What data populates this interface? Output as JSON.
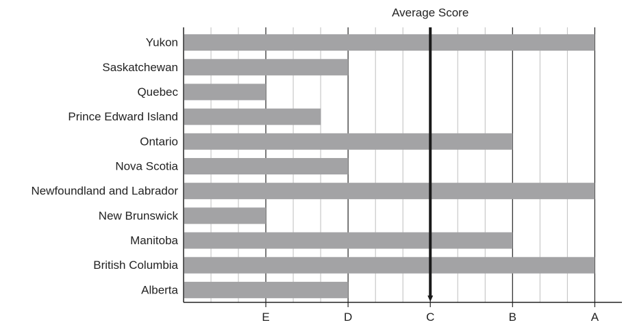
{
  "chart_data": {
    "type": "bar",
    "orientation": "horizontal",
    "categories": [
      "Yukon",
      "Saskatchewan",
      "Quebec",
      "Prince Edward Island",
      "Ontario",
      "Nova Scotia",
      "Newfoundland and Labrador",
      "New Brunswick",
      "Manitoba",
      "British Columbia",
      "Alberta"
    ],
    "values": [
      5.0,
      2.0,
      1.0,
      1.67,
      4.0,
      2.0,
      5.0,
      1.0,
      4.0,
      5.0,
      2.0
    ],
    "x_ticks": [
      "E",
      "D",
      "C",
      "B",
      "A"
    ],
    "x_tick_values": [
      1,
      2,
      3,
      4,
      5
    ],
    "xlim": [
      0,
      5.33
    ],
    "average": {
      "label": "Average Score",
      "value": 3.0
    },
    "colors": {
      "bar": "#a3a3a5",
      "grid": "#bdbdbd",
      "major_grid": "#222222",
      "axis": "#222222",
      "average_line": "#1a1a1a"
    },
    "grid": true
  }
}
